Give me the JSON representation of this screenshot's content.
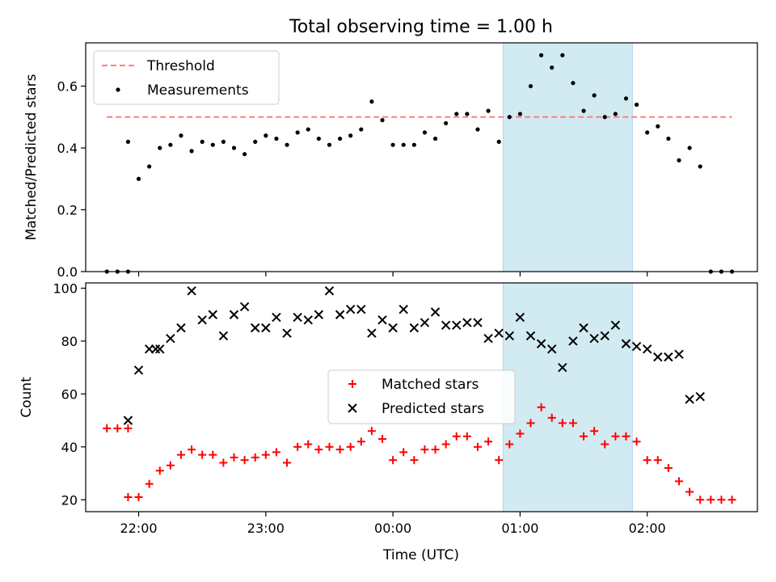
{
  "title": "Total observing time = 1.00 h",
  "highlight": {
    "start": "00:52",
    "end": "01:53",
    "color": "#add8e6"
  },
  "x_axis": {
    "label": "Time (UTC)",
    "range": [
      "21:35",
      "02:52"
    ],
    "ticks": [
      "22:00",
      "23:00",
      "00:00",
      "01:00",
      "02:00"
    ]
  },
  "chart_data": [
    {
      "type": "scatter",
      "ylabel": "Matched/Predicted stars",
      "ylim": [
        0,
        0.74
      ],
      "yticks": [
        "0.0",
        "0.2",
        "0.4",
        "0.6"
      ],
      "legend": {
        "placement": "top-left",
        "entries": [
          "Threshold",
          "Measurements"
        ]
      },
      "threshold": {
        "name": "Threshold",
        "value": 0.5,
        "x_range": [
          "21:45",
          "02:40"
        ],
        "color": "#ff7f7f"
      },
      "series": [
        {
          "name": "Measurements",
          "color": "#000000",
          "x": [
            "21:45",
            "21:50",
            "21:55",
            "22:00",
            "22:05",
            "22:10",
            "22:15",
            "22:20",
            "22:25",
            "22:30",
            "22:35",
            "22:40",
            "22:45",
            "22:50",
            "22:55",
            "23:00",
            "23:05",
            "23:10",
            "23:15",
            "23:20",
            "23:25",
            "23:30",
            "23:35",
            "23:40",
            "23:45",
            "23:50",
            "23:55",
            "00:00",
            "00:05",
            "00:10",
            "00:15",
            "00:20",
            "00:25",
            "00:30",
            "00:35",
            "00:40",
            "00:45",
            "00:50",
            "00:55",
            "01:00",
            "01:05",
            "01:10",
            "01:15",
            "01:20",
            "01:25",
            "01:30",
            "01:35",
            "01:40",
            "01:45",
            "01:50",
            "01:55",
            "02:00",
            "02:05",
            "02:10",
            "02:15",
            "02:20",
            "02:25",
            "02:30",
            "02:35",
            "02:40"
          ],
          "values": [
            0.0,
            0.0,
            0.42,
            0.3,
            0.34,
            0.4,
            0.41,
            0.44,
            0.39,
            0.42,
            0.41,
            0.42,
            0.4,
            0.38,
            0.42,
            0.44,
            0.43,
            0.41,
            0.45,
            0.46,
            0.43,
            0.41,
            0.43,
            0.44,
            0.46,
            0.55,
            0.49,
            0.41,
            0.41,
            0.41,
            0.45,
            0.43,
            0.48,
            0.51,
            0.51,
            0.46,
            0.52,
            0.42,
            0.5,
            0.51,
            0.6,
            0.7,
            0.66,
            0.7,
            0.61,
            0.52,
            0.57,
            0.5,
            0.51,
            0.56,
            0.54,
            0.45,
            0.47,
            0.43,
            0.36,
            0.4,
            0.34,
            0.0,
            0.0,
            0.0
          ],
          "x_extra": [
            "21:55"
          ],
          "values_extra": [
            0.0
          ]
        }
      ]
    },
    {
      "type": "scatter",
      "ylabel": "Count",
      "ylim": [
        15.5,
        102
      ],
      "yticks": [
        "20",
        "40",
        "60",
        "80",
        "100"
      ],
      "legend": {
        "placement": "center",
        "entries": [
          "Matched stars",
          "Predicted stars"
        ]
      },
      "series": [
        {
          "name": "Matched stars",
          "color": "#ff0000",
          "x": [
            "21:45",
            "21:50",
            "21:55",
            "21:55",
            "22:00",
            "22:05",
            "22:10",
            "22:15",
            "22:20",
            "22:25",
            "22:30",
            "22:35",
            "22:40",
            "22:45",
            "22:50",
            "22:55",
            "23:00",
            "23:05",
            "23:10",
            "23:15",
            "23:20",
            "23:25",
            "23:30",
            "23:35",
            "23:40",
            "23:45",
            "23:50",
            "23:55",
            "00:00",
            "00:05",
            "00:10",
            "00:15",
            "00:20",
            "00:25",
            "00:30",
            "00:35",
            "00:40",
            "00:45",
            "00:50",
            "00:55",
            "01:00",
            "01:05",
            "01:10",
            "01:15",
            "01:20",
            "01:25",
            "01:30",
            "01:35",
            "01:40",
            "01:45",
            "01:50",
            "01:55",
            "02:00",
            "02:05",
            "02:10",
            "02:15",
            "02:20",
            "02:25",
            "02:30",
            "02:35",
            "02:40"
          ],
          "values": [
            47,
            47,
            47,
            21,
            21,
            26,
            31,
            33,
            37,
            39,
            37,
            37,
            34,
            36,
            35,
            36,
            37,
            38,
            34,
            40,
            41,
            39,
            40,
            39,
            40,
            42,
            46,
            43,
            35,
            38,
            35,
            39,
            39,
            41,
            44,
            44,
            40,
            42,
            35,
            41,
            45,
            49,
            55,
            51,
            49,
            49,
            44,
            46,
            41,
            44,
            44,
            42,
            35,
            35,
            32,
            27,
            23,
            20,
            20,
            20,
            20
          ]
        },
        {
          "name": "Predicted stars",
          "color": "#000000",
          "x": [
            "21:55",
            "22:00",
            "22:05",
            "22:08",
            "22:10",
            "22:15",
            "22:20",
            "22:25",
            "22:30",
            "22:35",
            "22:40",
            "22:45",
            "22:50",
            "22:55",
            "23:00",
            "23:05",
            "23:10",
            "23:15",
            "23:20",
            "23:25",
            "23:30",
            "23:35",
            "23:40",
            "23:45",
            "23:50",
            "23:55",
            "00:00",
            "00:05",
            "00:10",
            "00:15",
            "00:20",
            "00:25",
            "00:30",
            "00:35",
            "00:40",
            "00:45",
            "00:50",
            "00:55",
            "01:00",
            "01:05",
            "01:10",
            "01:15",
            "01:20",
            "01:25",
            "01:30",
            "01:35",
            "01:40",
            "01:45",
            "01:50",
            "01:55",
            "02:00",
            "02:05",
            "02:10",
            "02:15",
            "02:20",
            "02:25"
          ],
          "values": [
            50,
            69,
            77,
            77,
            77,
            81,
            85,
            99,
            88,
            90,
            82,
            90,
            93,
            85,
            85,
            89,
            83,
            89,
            88,
            90,
            99,
            90,
            92,
            92,
            83,
            88,
            85,
            92,
            85,
            87,
            91,
            86,
            86,
            87,
            87,
            81,
            83,
            82,
            89,
            82,
            79,
            77,
            70,
            80,
            85,
            81,
            82,
            86,
            79,
            78,
            77,
            74,
            74,
            75,
            58,
            59
          ]
        }
      ]
    }
  ]
}
